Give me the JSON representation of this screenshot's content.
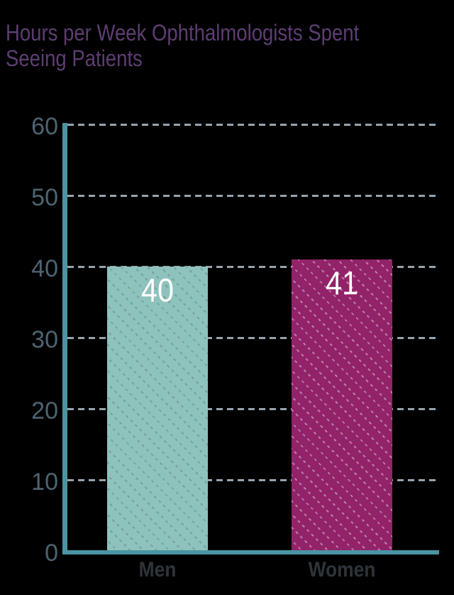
{
  "title": {
    "text": "Hours per Week Ophthalmologists Spent Seeing Patients",
    "lines": [
      "Hours per Week Ophthalmologists Spent",
      "Seeing Patients"
    ],
    "color": "#5d3d72"
  },
  "chart_data": {
    "type": "bar",
    "title": "Hours per Week Ophthalmologists Spent Seeing Patients",
    "categories": [
      "Men",
      "Women"
    ],
    "values": [
      40,
      41
    ],
    "value_labels": [
      "40",
      "41"
    ],
    "bar_colors": [
      "#8dc3bc",
      "#922368"
    ],
    "bar_pattern": "diagonal-dashed-lines",
    "pattern_colors": [
      "rgba(105,130,133,0.55)",
      "rgba(255,255,255,0.40)"
    ],
    "xlabel": "",
    "ylabel": "",
    "ylim": [
      0,
      60
    ],
    "yticks": [
      0,
      10,
      20,
      30,
      40,
      50,
      60
    ],
    "grid": "horizontal-dashed",
    "legend": "none",
    "colors": {
      "background": "#000000",
      "axis": "#4a95a3",
      "gridline": "#97a3ad",
      "tick_label": "#4d6470",
      "category_label": "#2e343a",
      "value_label": "#ffffff"
    }
  }
}
